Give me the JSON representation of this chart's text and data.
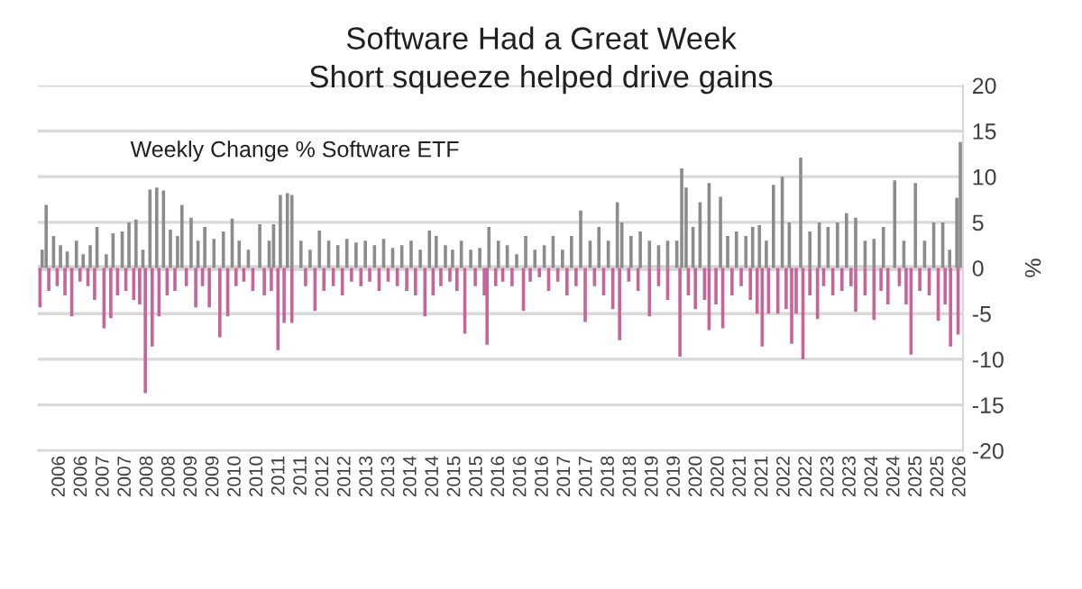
{
  "chart_data": {
    "type": "bar",
    "title": "Software Had a Great Week",
    "subtitle": "Short squeeze helped drive gains",
    "annotations": [
      "Weekly Change % Software ETF"
    ],
    "ylabel": "%",
    "series": [
      {
        "color": "#8c8c8c",
        "x": [
          "2006-01-19",
          "2006-02-20",
          "2006-04-20",
          "2006-06-14",
          "2006-08-07",
          "2006-10-19",
          "2006-12-12",
          "2007-02-06",
          "2007-04-01",
          "2007-06-14",
          "2007-08-07",
          "2007-10-19",
          "2007-12-12",
          "2008-02-06",
          "2008-04-01",
          "2008-05-27",
          "2008-07-20",
          "2008-09-12",
          "2008-11-06",
          "2009-01-02",
          "2009-02-06",
          "2009-04-20",
          "2009-06-14",
          "2009-08-07",
          "2009-10-19",
          "2010-01-02",
          "2010-03-13",
          "2010-05-08",
          "2010-07-20",
          "2010-10-19",
          "2011-01-02",
          "2011-02-06",
          "2011-04-01",
          "2011-05-27",
          "2011-07-02",
          "2011-09-12",
          "2011-11-24",
          "2012-02-06",
          "2012-04-20",
          "2012-07-02",
          "2012-09-12",
          "2012-11-24",
          "2013-02-06",
          "2013-04-20",
          "2013-07-02",
          "2013-09-12",
          "2013-11-24",
          "2014-02-06",
          "2014-04-20",
          "2014-07-02",
          "2014-08-25",
          "2014-11-06",
          "2015-01-02",
          "2015-03-13",
          "2015-05-27",
          "2015-08-07",
          "2015-10-19",
          "2016-01-02",
          "2016-03-13",
          "2016-05-27",
          "2016-08-07",
          "2016-10-19",
          "2017-01-02",
          "2017-03-13",
          "2017-05-27",
          "2017-08-07",
          "2017-10-19",
          "2018-01-02",
          "2018-03-13",
          "2018-05-27",
          "2018-08-07",
          "2018-09-12",
          "2018-11-24",
          "2019-02-06",
          "2019-04-20",
          "2019-07-02",
          "2019-09-12",
          "2019-11-24",
          "2020-01-02",
          "2020-02-06",
          "2020-04-01",
          "2020-05-27",
          "2020-08-07",
          "2020-11-06",
          "2021-01-02",
          "2021-03-13",
          "2021-05-27",
          "2021-07-20",
          "2021-09-12",
          "2021-11-06",
          "2022-01-02",
          "2022-03-13",
          "2022-05-08",
          "2022-08-07",
          "2022-10-19",
          "2023-01-02",
          "2023-03-13",
          "2023-05-27",
          "2023-08-07",
          "2023-10-19",
          "2024-01-02",
          "2024-03-13",
          "2024-05-27",
          "2024-08-25",
          "2024-11-06",
          "2025-02-06",
          "2025-04-20",
          "2025-07-02",
          "2025-09-12",
          "2025-11-06",
          "2026-01-02",
          "2026-01-30"
        ],
        "values": [
          2.0,
          6.9,
          3.5,
          2.5,
          1.8,
          3.0,
          1.5,
          2.5,
          4.5,
          1.5,
          3.8,
          4.0,
          5.0,
          5.3,
          2.0,
          8.6,
          8.8,
          8.5,
          4.2,
          3.5,
          6.9,
          5.5,
          3.0,
          4.5,
          3.2,
          4.0,
          5.4,
          3.0,
          2.0,
          4.8,
          3.0,
          4.8,
          8.0,
          8.2,
          8.0,
          3.0,
          2.0,
          4.1,
          3.0,
          2.5,
          3.2,
          2.8,
          3.0,
          2.5,
          3.2,
          2.2,
          2.5,
          3.0,
          2.0,
          4.1,
          3.5,
          2.5,
          2.0,
          3.0,
          2.0,
          2.2,
          4.5,
          3.0,
          2.5,
          1.5,
          3.5,
          2.0,
          2.5,
          3.5,
          2.0,
          3.5,
          6.3,
          3.0,
          4.5,
          3.0,
          7.2,
          5.0,
          3.5,
          4.0,
          3.0,
          2.5,
          3.0,
          3.0,
          10.9,
          8.8,
          4.5,
          7.2,
          9.3,
          7.8,
          3.5,
          4.0,
          3.5,
          4.5,
          4.7,
          3.0,
          9.1,
          10.0,
          5.0,
          12.1,
          4.0,
          5.0,
          4.5,
          5.0,
          6.0,
          5.5,
          3.0,
          3.2,
          4.5,
          9.6,
          3.0,
          9.3,
          3.0,
          5.0,
          5.0,
          2.0,
          7.7,
          13.8
        ]
      },
      {
        "color": "#c8649a",
        "x": [
          "2006-01-02",
          "2006-03-13",
          "2006-05-19",
          "2006-07-20",
          "2006-09-12",
          "2006-11-17",
          "2007-01-19",
          "2007-03-13",
          "2007-05-27",
          "2007-07-20",
          "2007-09-12",
          "2007-11-17",
          "2008-01-19",
          "2008-03-06",
          "2008-04-20",
          "2008-06-14",
          "2008-08-07",
          "2008-10-11",
          "2008-12-12",
          "2009-03-13",
          "2009-05-27",
          "2009-07-20",
          "2009-09-12",
          "2009-12-05",
          "2010-02-06",
          "2010-04-13",
          "2010-06-14",
          "2010-08-25",
          "2010-11-24",
          "2011-01-19",
          "2011-03-13",
          "2011-05-01",
          "2011-07-02",
          "2011-10-19",
          "2012-01-02",
          "2012-03-13",
          "2012-05-27",
          "2012-08-07",
          "2012-10-19",
          "2013-01-02",
          "2013-03-13",
          "2013-05-27",
          "2013-08-07",
          "2013-10-19",
          "2014-01-02",
          "2014-03-13",
          "2014-05-27",
          "2014-07-31",
          "2014-10-01",
          "2014-12-12",
          "2015-02-06",
          "2015-04-10",
          "2015-07-02",
          "2015-09-12",
          "2015-10-04",
          "2015-12-12",
          "2016-02-06",
          "2016-04-20",
          "2016-07-20",
          "2016-09-12",
          "2016-11-24",
          "2017-02-06",
          "2017-04-20",
          "2017-07-02",
          "2017-09-12",
          "2017-11-24",
          "2018-02-06",
          "2018-04-20",
          "2018-07-02",
          "2018-08-25",
          "2018-11-06",
          "2019-01-19",
          "2019-04-20",
          "2019-07-02",
          "2019-09-12",
          "2019-12-19",
          "2020-02-24",
          "2020-04-20",
          "2020-07-02",
          "2020-08-07",
          "2020-10-01",
          "2020-11-24",
          "2021-02-06",
          "2021-04-20",
          "2021-07-02",
          "2021-08-25",
          "2021-10-04",
          "2021-11-24",
          "2022-02-06",
          "2022-04-13",
          "2022-05-27",
          "2022-07-02",
          "2022-08-25",
          "2022-10-19",
          "2022-12-19",
          "2023-02-06",
          "2023-04-20",
          "2023-07-02",
          "2023-09-12",
          "2023-10-19",
          "2024-01-02",
          "2024-03-13",
          "2024-05-08",
          "2024-07-02",
          "2024-10-01",
          "2024-11-24",
          "2025-01-02",
          "2025-03-13",
          "2025-05-27",
          "2025-08-07",
          "2025-10-01",
          "2025-11-13",
          "2026-01-12"
        ],
        "values": [
          -4.3,
          -2.5,
          -2.0,
          -3.0,
          -5.3,
          -1.5,
          -2.0,
          -3.5,
          -6.6,
          -5.5,
          -3.0,
          -2.5,
          -3.5,
          -4.0,
          -13.7,
          -8.6,
          -5.3,
          -3.0,
          -2.5,
          -2.0,
          -4.3,
          -2.0,
          -4.3,
          -7.6,
          -5.3,
          -2.0,
          -1.5,
          -2.5,
          -3.0,
          -2.5,
          -9.0,
          -6.0,
          -6.0,
          -2.0,
          -4.7,
          -2.5,
          -2.0,
          -3.0,
          -1.5,
          -2.0,
          -1.5,
          -2.5,
          -1.5,
          -2.0,
          -2.5,
          -3.0,
          -5.3,
          -3.0,
          -2.0,
          -1.5,
          -2.5,
          -7.2,
          -2.0,
          -3.0,
          -8.4,
          -2.0,
          -1.5,
          -2.0,
          -4.7,
          -1.5,
          -1.0,
          -2.5,
          -1.5,
          -3.0,
          -2.0,
          -5.9,
          -2.0,
          -3.0,
          -4.5,
          -7.9,
          -1.5,
          -2.5,
          -5.3,
          -2.0,
          -3.5,
          -9.7,
          -3.0,
          -4.5,
          -3.5,
          -6.8,
          -4.0,
          -6.6,
          -3.0,
          -2.0,
          -3.5,
          -5.0,
          -8.6,
          -5.0,
          -5.0,
          -4.5,
          -8.3,
          -5.0,
          -10.0,
          -3.0,
          -5.6,
          -2.0,
          -3.0,
          -2.5,
          -2.0,
          -4.8,
          -3.0,
          -5.7,
          -2.5,
          -4.0,
          -2.0,
          -4.0,
          -9.5,
          -2.5,
          -3.0,
          -5.8,
          -4.0,
          -8.6,
          -7.3
        ]
      }
    ],
    "xlim": [
      "2005-12-16",
      "2026-02-20"
    ],
    "xticks": [
      {
        "value": "2006-06-09",
        "label": "2006"
      },
      {
        "value": "2006-12-01",
        "label": "2006"
      },
      {
        "value": "2007-05-25",
        "label": "2007"
      },
      {
        "value": "2007-11-16",
        "label": "2007"
      },
      {
        "value": "2008-05-09",
        "label": "2008"
      },
      {
        "value": "2008-10-31",
        "label": "2008"
      },
      {
        "value": "2009-04-24",
        "label": "2009"
      },
      {
        "value": "2009-10-16",
        "label": "2009"
      },
      {
        "value": "2010-04-09",
        "label": "2010"
      },
      {
        "value": "2010-10-01",
        "label": "2010"
      },
      {
        "value": "2011-03-25",
        "label": "2011"
      },
      {
        "value": "2011-09-16",
        "label": "2011"
      },
      {
        "value": "2012-03-09",
        "label": "2012"
      },
      {
        "value": "2012-08-31",
        "label": "2012"
      },
      {
        "value": "2013-02-22",
        "label": "2013"
      },
      {
        "value": "2013-08-16",
        "label": "2013"
      },
      {
        "value": "2014-02-07",
        "label": "2014"
      },
      {
        "value": "2014-08-01",
        "label": "2014"
      },
      {
        "value": "2015-01-23",
        "label": "2015"
      },
      {
        "value": "2015-07-17",
        "label": "2015"
      },
      {
        "value": "2016-01-08",
        "label": "2016"
      },
      {
        "value": "2016-07-01",
        "label": "2016"
      },
      {
        "value": "2016-12-23",
        "label": "2016"
      },
      {
        "value": "2017-06-16",
        "label": "2017"
      },
      {
        "value": "2017-12-08",
        "label": "2017"
      },
      {
        "value": "2018-06-01",
        "label": "2018"
      },
      {
        "value": "2018-11-23",
        "label": "2018"
      },
      {
        "value": "2019-05-17",
        "label": "2019"
      },
      {
        "value": "2019-11-08",
        "label": "2019"
      },
      {
        "value": "2020-05-01",
        "label": "2020"
      },
      {
        "value": "2020-10-23",
        "label": "2020"
      },
      {
        "value": "2021-04-16",
        "label": "2021"
      },
      {
        "value": "2021-10-08",
        "label": "2021"
      },
      {
        "value": "2022-04-01",
        "label": "2022"
      },
      {
        "value": "2022-09-23",
        "label": "2022"
      },
      {
        "value": "2023-03-17",
        "label": "2023"
      },
      {
        "value": "2023-09-08",
        "label": "2023"
      },
      {
        "value": "2024-03-01",
        "label": "2024"
      },
      {
        "value": "2024-08-23",
        "label": "2024"
      },
      {
        "value": "2025-02-14",
        "label": "2025"
      },
      {
        "value": "2025-08-08",
        "label": "2025"
      },
      {
        "value": "2026-01-30",
        "label": "2026"
      }
    ],
    "ylim": [
      -20,
      20
    ],
    "yticks": [
      -20,
      -15,
      -10,
      -5,
      0,
      5,
      10,
      15,
      20
    ],
    "grid": "y"
  }
}
